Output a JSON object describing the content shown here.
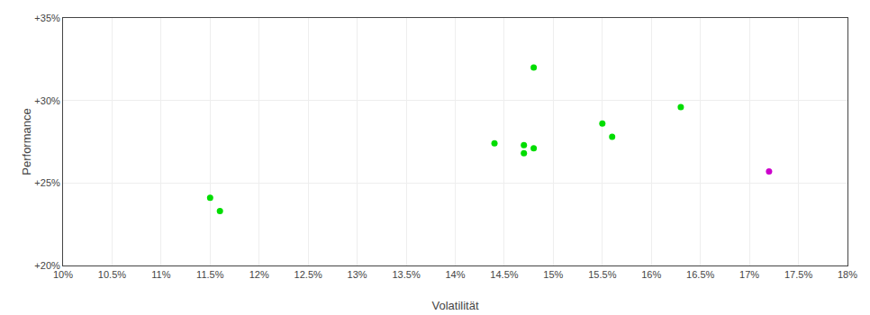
{
  "chart_data": {
    "type": "scatter",
    "xlabel": "Volatilität",
    "ylabel": "Performance",
    "xlim": [
      0.1,
      0.18
    ],
    "ylim": [
      0.2,
      0.35
    ],
    "xticks": [
      {
        "value": 0.1,
        "label": "10%"
      },
      {
        "value": 0.105,
        "label": "10.5%"
      },
      {
        "value": 0.11,
        "label": "11%"
      },
      {
        "value": 0.115,
        "label": "11.5%"
      },
      {
        "value": 0.12,
        "label": "12%"
      },
      {
        "value": 0.125,
        "label": "12.5%"
      },
      {
        "value": 0.13,
        "label": "13%"
      },
      {
        "value": 0.135,
        "label": "13.5%"
      },
      {
        "value": 0.14,
        "label": "14%"
      },
      {
        "value": 0.145,
        "label": "14.5%"
      },
      {
        "value": 0.15,
        "label": "15%"
      },
      {
        "value": 0.155,
        "label": "15.5%"
      },
      {
        "value": 0.16,
        "label": "16%"
      },
      {
        "value": 0.165,
        "label": "16.5%"
      },
      {
        "value": 0.17,
        "label": "17%"
      },
      {
        "value": 0.175,
        "label": "17.5%"
      },
      {
        "value": 0.18,
        "label": "18%"
      }
    ],
    "yticks": [
      {
        "value": 0.2,
        "label": "+20%"
      },
      {
        "value": 0.25,
        "label": "+25%"
      },
      {
        "value": 0.3,
        "label": "+30%"
      },
      {
        "value": 0.35,
        "label": "+35%"
      }
    ],
    "grid": true,
    "series": [
      {
        "color": "#00dd00",
        "x": [
          0.115,
          0.116,
          0.144,
          0.147,
          0.148,
          0.147,
          0.148,
          0.155,
          0.156,
          0.163
        ],
        "values": [
          0.241,
          0.233,
          0.274,
          0.273,
          0.271,
          0.268,
          0.32,
          0.286,
          0.278,
          0.296
        ]
      },
      {
        "color": "#cc00cc",
        "x": [
          0.172
        ],
        "values": [
          0.257
        ]
      }
    ]
  }
}
